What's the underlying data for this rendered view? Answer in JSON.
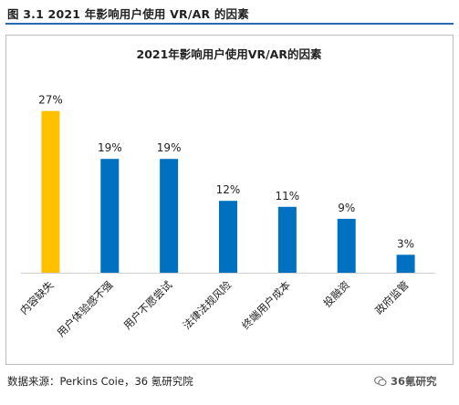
{
  "figure_caption": "图 3.1 2021 年影响用户使用 VR/AR 的因素",
  "source_text": "数据来源：Perkins Coie，36 氪研究院",
  "watermark": {
    "icon": "wechat-icon",
    "text": "36氪研究"
  },
  "colors": {
    "highlight": "#FFC000",
    "bar": "#0070C0",
    "rule": "#2a6ab5"
  },
  "chart_data": {
    "type": "bar",
    "title": "2021年影响用户使用VR/AR的因素",
    "xlabel": "",
    "ylabel": "",
    "ylim": [
      0,
      30
    ],
    "grid": false,
    "categories": [
      "内容缺失",
      "用户体验感不强",
      "用户不愿尝试",
      "法律法规风险",
      "终端用户成本",
      "投融资",
      "政府监管"
    ],
    "values": [
      27,
      19,
      19,
      12,
      11,
      9,
      3
    ],
    "data_labels": [
      "27%",
      "19%",
      "19%",
      "12%",
      "11%",
      "9%",
      "3%"
    ],
    "highlight_index": 0
  }
}
